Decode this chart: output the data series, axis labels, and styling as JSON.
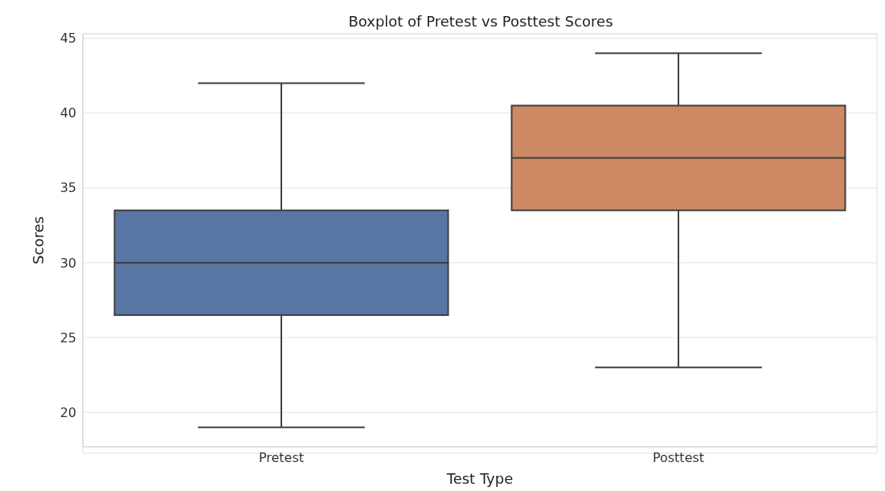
{
  "chart_data": {
    "type": "box",
    "title": "Boxplot of Pretest vs Posttest Scores",
    "xlabel": "Test Type",
    "ylabel": "Scores",
    "categories": [
      "Pretest",
      "Posttest"
    ],
    "colors": [
      "#5875a4",
      "#cc8963"
    ],
    "boxes": [
      {
        "low": 19,
        "q1": 26.5,
        "median": 30,
        "q3": 33.5,
        "high": 42
      },
      {
        "low": 23,
        "q1": 33.5,
        "median": 37,
        "q3": 40.5,
        "high": 44
      }
    ],
    "ylim": [
      17.7,
      45.3
    ],
    "yticks": [
      20,
      25,
      30,
      35,
      40,
      45
    ],
    "grid": "y"
  }
}
